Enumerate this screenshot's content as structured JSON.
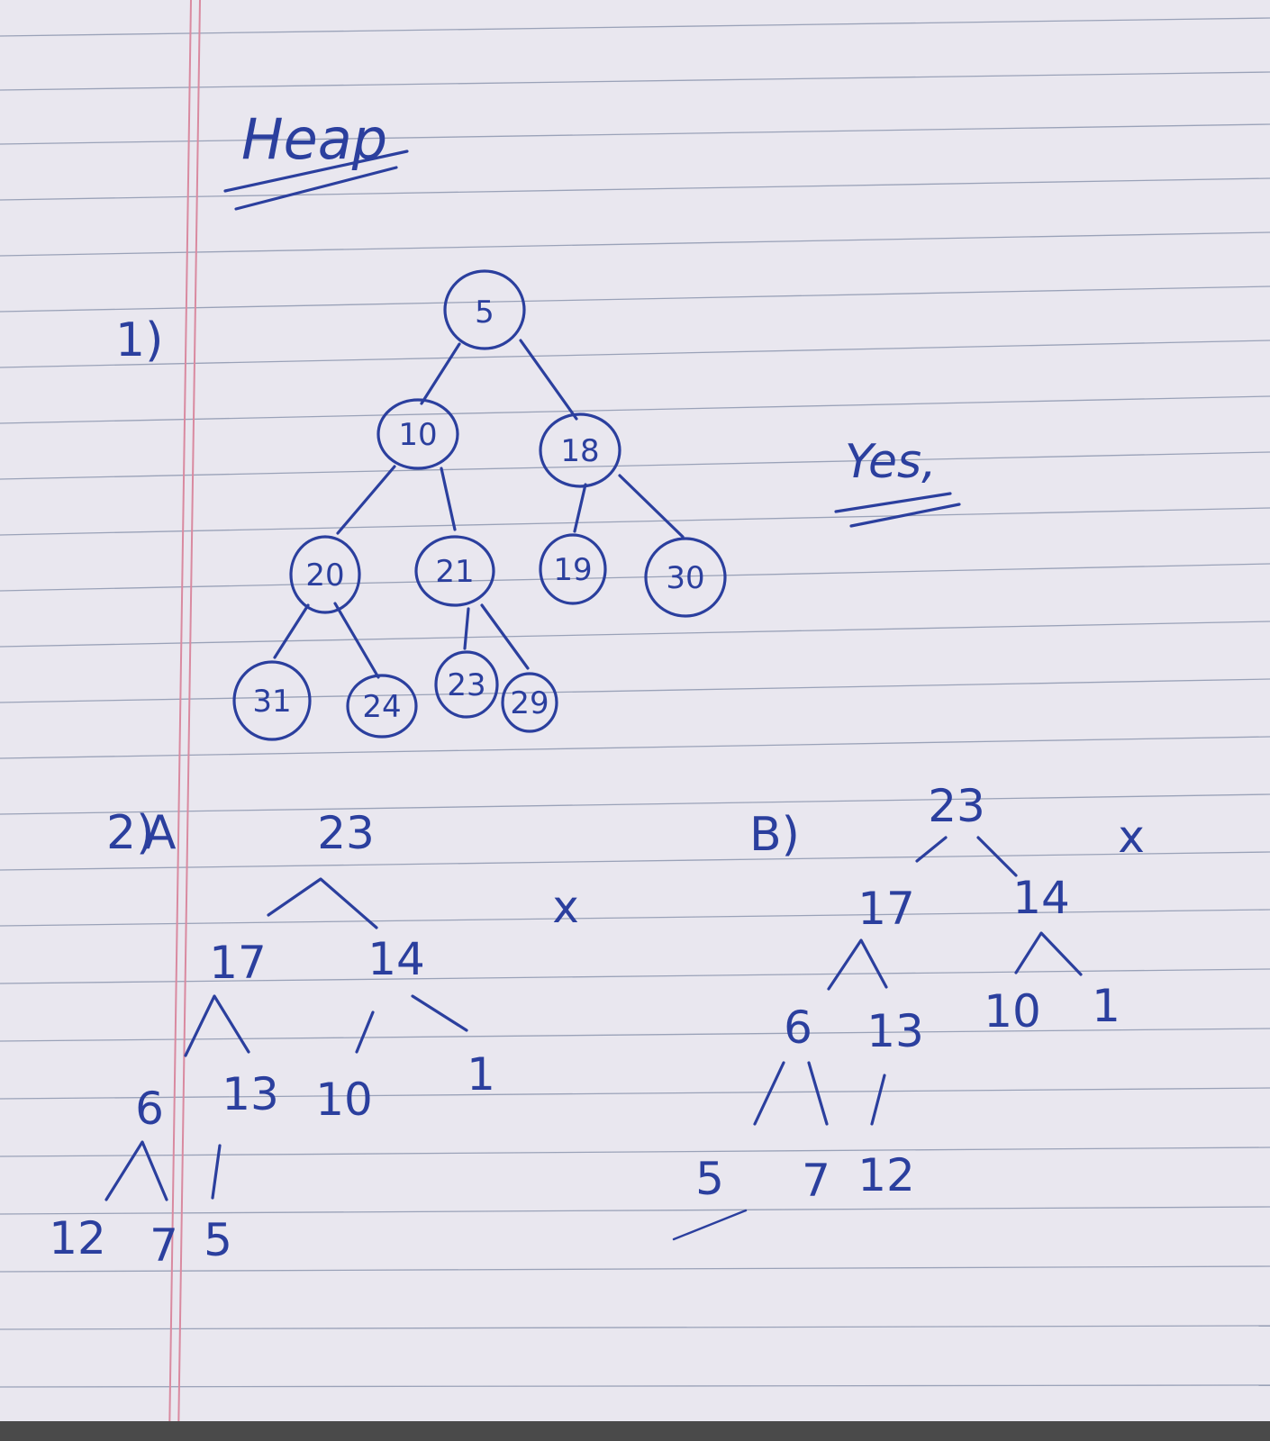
{
  "title": "Heap",
  "q1": {
    "label": "1)",
    "answer": "Yes,",
    "nodes": [
      "5",
      "10",
      "18",
      "20",
      "21",
      "19",
      "30",
      "31",
      "24",
      "23",
      "29"
    ]
  },
  "q2": {
    "label": "2)",
    "a": {
      "label": "A",
      "mark": "x",
      "nodes": [
        "23",
        "17",
        "14",
        "6",
        "13",
        "10",
        "1",
        "12",
        "7",
        "5"
      ]
    },
    "b": {
      "label": "B)",
      "mark": "x",
      "nodes": [
        "23",
        "17",
        "14",
        "6",
        "13",
        "10",
        "1",
        "5",
        "7",
        "12"
      ]
    }
  }
}
